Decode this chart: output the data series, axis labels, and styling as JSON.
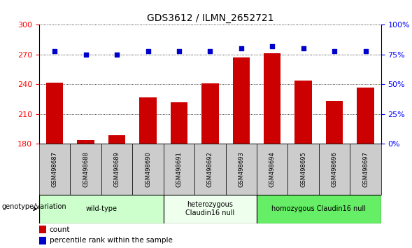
{
  "title": "GDS3612 / ILMN_2652721",
  "samples": [
    "GSM498687",
    "GSM498688",
    "GSM498689",
    "GSM498690",
    "GSM498691",
    "GSM498692",
    "GSM498693",
    "GSM498694",
    "GSM498695",
    "GSM498696",
    "GSM498697"
  ],
  "counts": [
    242,
    184,
    189,
    227,
    222,
    241,
    267,
    271,
    244,
    223,
    237
  ],
  "percentiles": [
    78,
    75,
    75,
    78,
    78,
    78,
    80,
    82,
    80,
    78,
    78
  ],
  "ylim_left": [
    180,
    300
  ],
  "ylim_right": [
    0,
    100
  ],
  "yticks_left": [
    180,
    210,
    240,
    270,
    300
  ],
  "yticks_right": [
    0,
    25,
    50,
    75,
    100
  ],
  "bar_color": "#cc0000",
  "dot_color": "#0000cc",
  "sample_box_color": "#cccccc",
  "groups": [
    {
      "label": "wild-type",
      "indices": [
        0,
        1,
        2,
        3
      ],
      "color": "#ccffcc"
    },
    {
      "label": "heterozygous\nClaudin16 null",
      "indices": [
        4,
        5,
        6
      ],
      "color": "#eeffee"
    },
    {
      "label": "homozygous Claudin16 null",
      "indices": [
        7,
        8,
        9,
        10
      ],
      "color": "#66ee66"
    }
  ],
  "legend_count_label": "count",
  "legend_percentile_label": "percentile rank within the sample",
  "genotype_label": "genotype/variation"
}
